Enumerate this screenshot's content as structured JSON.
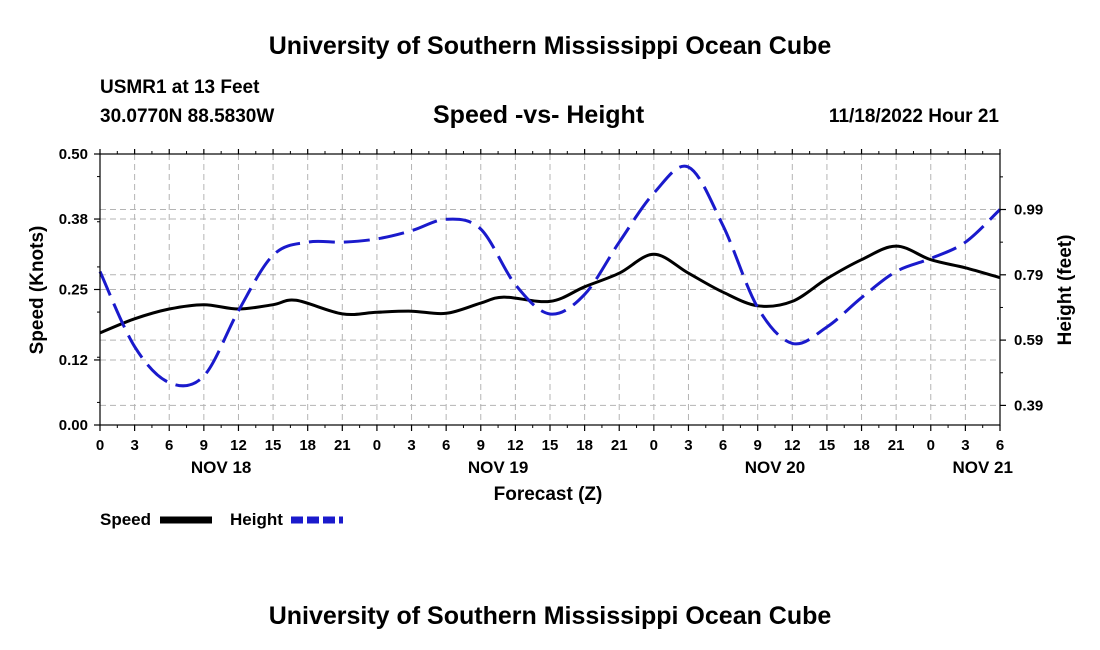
{
  "header": {
    "title_top": "University of Southern Mississippi Ocean Cube",
    "station": "USMR1 at 13 Feet",
    "coords": "30.0770N  88.5830W",
    "chart_title": "Speed -vs- Height",
    "datetime": "11/18/2022 Hour 21",
    "title_bottom": "University of Southern Mississippi Ocean Cube"
  },
  "legend": {
    "speed_label": "Speed",
    "height_label": "Height"
  },
  "colors": {
    "speed": "#000000",
    "height": "#1a1acc",
    "grid": "#b4b4b4"
  },
  "chart_data": {
    "type": "line",
    "title": "Speed -vs- Height",
    "xlabel": "Forecast (Z)",
    "ylabel": "Speed (Knots)",
    "y2label": "Height (feet)",
    "xlim": [
      0,
      78
    ],
    "ylim": [
      0,
      0.5
    ],
    "y2lim": [
      0.33,
      1.16
    ],
    "x_ticks": [
      0,
      3,
      6,
      9,
      12,
      15,
      18,
      21,
      24,
      27,
      30,
      33,
      36,
      39,
      42,
      45,
      48,
      51,
      54,
      57,
      60,
      63,
      66,
      69,
      72,
      75,
      78
    ],
    "x_tick_labels": [
      "0",
      "3",
      "6",
      "9",
      "12",
      "15",
      "18",
      "21",
      "0",
      "3",
      "6",
      "9",
      "12",
      "15",
      "18",
      "21",
      "0",
      "3",
      "6",
      "9",
      "12",
      "15",
      "18",
      "21",
      "0",
      "3",
      "6"
    ],
    "day_labels": [
      {
        "x": 10.5,
        "label": "NOV 18"
      },
      {
        "x": 34.5,
        "label": "NOV 19"
      },
      {
        "x": 58.5,
        "label": "NOV 20"
      },
      {
        "x": 76.5,
        "label": "NOV 21"
      }
    ],
    "y_ticks": [
      0.0,
      0.12,
      0.25,
      0.38,
      0.5
    ],
    "y_tick_labels": [
      "0.00",
      "0.12",
      "0.25",
      "0.38",
      "0.50"
    ],
    "y2_ticks": [
      0.39,
      0.59,
      0.79,
      0.99
    ],
    "y2_tick_labels": [
      "0.39",
      "0.59",
      "0.79",
      "0.99"
    ],
    "series": [
      {
        "name": "Speed",
        "axis": "left",
        "x": [
          0,
          3,
          6,
          9,
          12,
          15,
          17,
          21,
          24,
          27,
          30,
          33,
          35,
          39,
          42,
          45,
          48,
          51,
          54,
          57,
          60,
          63,
          66,
          69,
          72,
          75,
          78
        ],
        "values": [
          0.17,
          0.196,
          0.214,
          0.222,
          0.214,
          0.222,
          0.23,
          0.205,
          0.208,
          0.21,
          0.206,
          0.225,
          0.236,
          0.228,
          0.255,
          0.28,
          0.315,
          0.28,
          0.245,
          0.22,
          0.228,
          0.27,
          0.305,
          0.33,
          0.305,
          0.29,
          0.272
        ]
      },
      {
        "name": "Height",
        "axis": "right",
        "x": [
          0,
          3,
          6,
          9,
          12,
          15,
          18,
          21,
          24,
          27,
          30,
          33,
          36,
          39,
          42,
          45,
          48,
          51,
          54,
          57,
          60,
          63,
          66,
          69,
          72,
          75,
          78
        ],
        "values": [
          0.8,
          0.57,
          0.46,
          0.48,
          0.68,
          0.85,
          0.89,
          0.89,
          0.9,
          0.925,
          0.96,
          0.93,
          0.76,
          0.67,
          0.73,
          0.89,
          1.04,
          1.12,
          0.94,
          0.69,
          0.58,
          0.63,
          0.72,
          0.8,
          0.84,
          0.89,
          0.99
        ]
      }
    ]
  }
}
